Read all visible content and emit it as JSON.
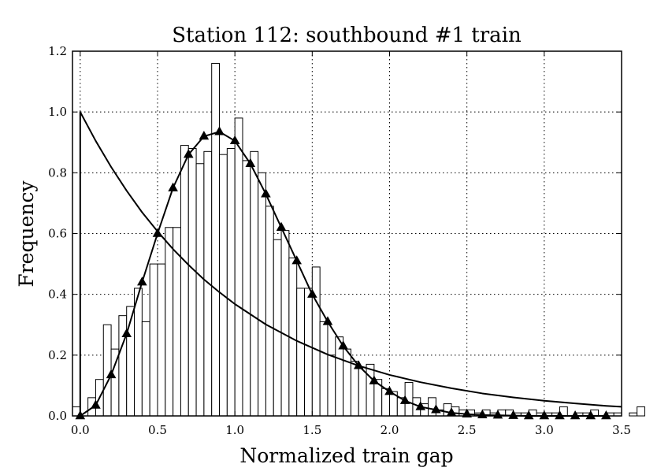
{
  "chart_data": {
    "type": "bar",
    "title": "Station 112: southbound #1 train",
    "xlabel": "Normalized train gap",
    "ylabel": "Frequency",
    "xlim": [
      -0.05,
      3.5
    ],
    "ylim": [
      0,
      1.2
    ],
    "xticks": [
      "0.0",
      "0.5",
      "1.0",
      "1.5",
      "2.0",
      "2.5",
      "3.0",
      "3.5"
    ],
    "yticks": [
      "0.0",
      "0.2",
      "0.4",
      "0.6",
      "0.8",
      "1.0",
      "1.2"
    ],
    "grid": true,
    "histogram": {
      "bin_width": 0.05,
      "bin_start": -0.05,
      "values": [
        0.03,
        0.0,
        0.06,
        0.12,
        0.3,
        0.22,
        0.33,
        0.36,
        0.42,
        0.31,
        0.5,
        0.5,
        0.62,
        0.62,
        0.89,
        0.88,
        0.83,
        0.87,
        1.16,
        0.86,
        0.88,
        0.98,
        0.84,
        0.87,
        0.8,
        0.69,
        0.58,
        0.61,
        0.52,
        0.42,
        0.42,
        0.49,
        0.31,
        0.2,
        0.26,
        0.22,
        0.18,
        0.16,
        0.17,
        0.12,
        0.09,
        0.08,
        0.06,
        0.11,
        0.06,
        0.04,
        0.06,
        0.02,
        0.04,
        0.03,
        0.02,
        0.02,
        0.01,
        0.02,
        0.01,
        0.02,
        0.02,
        0.01,
        0.01,
        0.02,
        0.01,
        0.01,
        0.01,
        0.03,
        0.0,
        0.01,
        0.01,
        0.02,
        0.0,
        0.01,
        0.01,
        0.0,
        0.01,
        0.03
      ]
    },
    "series": [
      {
        "type": "curve",
        "marker": "none",
        "x": [
          0.0,
          0.1,
          0.2,
          0.3,
          0.4,
          0.5,
          0.6,
          0.7,
          0.8,
          0.9,
          1.0,
          1.2,
          1.4,
          1.6,
          1.8,
          2.0,
          2.2,
          2.4,
          2.6,
          2.8,
          3.0,
          3.2,
          3.4,
          3.5
        ],
        "y": [
          1.0,
          0.905,
          0.819,
          0.741,
          0.67,
          0.607,
          0.549,
          0.497,
          0.449,
          0.407,
          0.368,
          0.301,
          0.247,
          0.202,
          0.165,
          0.135,
          0.111,
          0.091,
          0.074,
          0.061,
          0.05,
          0.041,
          0.033,
          0.03
        ]
      },
      {
        "type": "curve",
        "marker": "triangle",
        "x": [
          0.0,
          0.1,
          0.2,
          0.3,
          0.4,
          0.5,
          0.6,
          0.7,
          0.8,
          0.9,
          1.0,
          1.1,
          1.2,
          1.3,
          1.4,
          1.5,
          1.6,
          1.7,
          1.8,
          1.9,
          2.0,
          2.1,
          2.2,
          2.3,
          2.4,
          2.5,
          2.6,
          2.7,
          2.8,
          2.9,
          3.0,
          3.1,
          3.2,
          3.3,
          3.4
        ],
        "y": [
          0.0,
          0.035,
          0.135,
          0.27,
          0.44,
          0.6,
          0.75,
          0.86,
          0.92,
          0.935,
          0.905,
          0.83,
          0.73,
          0.62,
          0.51,
          0.4,
          0.31,
          0.23,
          0.165,
          0.115,
          0.08,
          0.05,
          0.03,
          0.02,
          0.01,
          0.006,
          0.003,
          0.002,
          0.001,
          0.0,
          0.0,
          0.0,
          0.0,
          0.0,
          0.0
        ]
      }
    ]
  }
}
